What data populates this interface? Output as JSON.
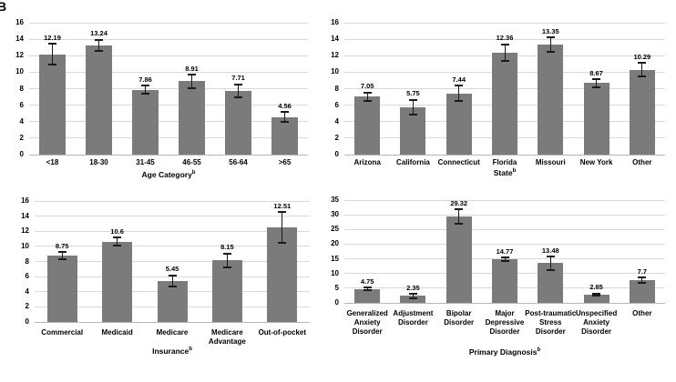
{
  "panel_label": "B",
  "colors": {
    "bar": "#7b7b7b",
    "gridline": "#d9d9d9",
    "axis_line": "#b7b7b7",
    "error_bar": "#1a1a1a",
    "text": "#000000",
    "background": "#ffffff"
  },
  "chart_data": [
    {
      "type": "bar",
      "xlabel": "Age Category",
      "xlabel_superscript": "b",
      "ylabel": "",
      "categories": [
        "<18",
        "18-30",
        "31-45",
        "46-55",
        "56-64",
        ">65"
      ],
      "values": [
        12.19,
        13.24,
        7.86,
        8.91,
        7.71,
        4.56
      ],
      "value_labels": [
        "12.19",
        "13.24",
        "7.86",
        "8.91",
        "7.71",
        "4.56"
      ],
      "errors": [
        1.25,
        0.7,
        0.5,
        0.8,
        0.8,
        0.6
      ],
      "ylim": [
        0,
        16
      ],
      "ytick_step": 2,
      "grid": true,
      "legend": "none"
    },
    {
      "type": "bar",
      "xlabel": "State",
      "xlabel_superscript": "b",
      "ylabel": "",
      "categories": [
        "Arizona",
        "California",
        "Connecticut",
        "Florida",
        "Missouri",
        "New York",
        "Other"
      ],
      "values": [
        7.05,
        5.75,
        7.44,
        12.36,
        13.35,
        8.67,
        10.29
      ],
      "value_labels": [
        "7.05",
        "5.75",
        "7.44",
        "12.36",
        "13.35",
        "8.67",
        "10.29"
      ],
      "errors": [
        0.5,
        0.9,
        0.9,
        1.0,
        0.85,
        0.45,
        0.8
      ],
      "ylim": [
        0,
        16
      ],
      "ytick_step": 2,
      "grid": true,
      "legend": "none"
    },
    {
      "type": "bar",
      "xlabel": "Insurance",
      "xlabel_superscript": "b",
      "ylabel": "",
      "categories": [
        "Commercial",
        "Medicaid",
        "Medicare",
        "Medicare Advantage",
        "Out-of-pocket"
      ],
      "values": [
        8.75,
        10.6,
        5.45,
        8.15,
        12.51
      ],
      "value_labels": [
        "8.75",
        "10.6",
        "5.45",
        "8.15",
        "12.51"
      ],
      "errors": [
        0.5,
        0.55,
        0.7,
        0.9,
        2.0
      ],
      "ylim": [
        0,
        16
      ],
      "ytick_step": 2,
      "grid": true,
      "legend": "none"
    },
    {
      "type": "bar",
      "xlabel": "Primary Diagnosis",
      "xlabel_superscript": "b",
      "ylabel": "",
      "categories": [
        "Generalized Anxiety Disorder",
        "Adjustment Disorder",
        "Bipolar Disorder",
        "Major Depressive Disorder",
        "Post-traumatic Stress Disorder",
        "Unspecified Anxiety Disorder",
        "Other"
      ],
      "values": [
        4.75,
        2.35,
        29.32,
        14.77,
        13.48,
        2.85,
        7.7
      ],
      "value_labels": [
        "4.75",
        "2.35",
        "29.32",
        "14.77",
        "13.48",
        "2.85",
        "7.7"
      ],
      "errors": [
        0.4,
        0.7,
        2.5,
        0.6,
        2.3,
        0.4,
        0.9
      ],
      "ylim": [
        0,
        35
      ],
      "ytick_step": 5,
      "grid": true,
      "legend": "none"
    }
  ]
}
